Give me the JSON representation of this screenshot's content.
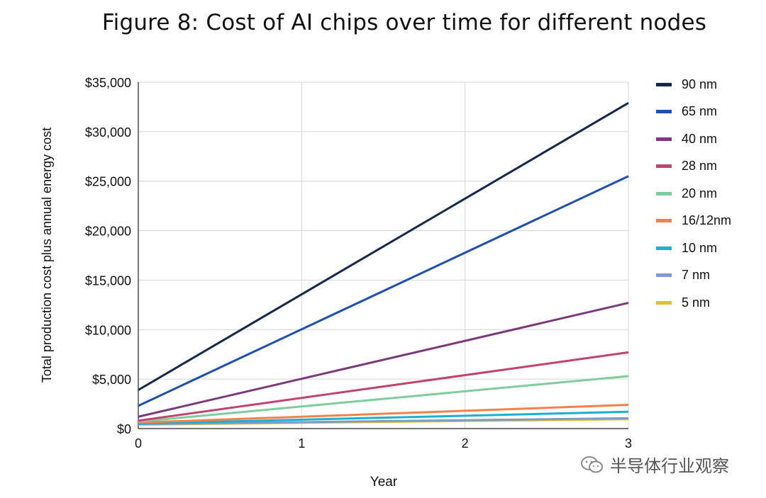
{
  "title": "Figure 8: Cost of AI chips over time for different nodes",
  "watermark": "半导体行业观察",
  "watermark_icon": "wechat-icon",
  "chart_data": {
    "type": "line",
    "title": "Figure 8: Cost of AI chips over time for different nodes",
    "xlabel": "Year",
    "ylabel": "Total production cost plus annual energy cost",
    "xlim": [
      0,
      3
    ],
    "ylim": [
      0,
      35000
    ],
    "x_ticks": [
      0,
      1,
      2,
      3
    ],
    "x_tick_labels": [
      "0",
      "1",
      "2",
      "3"
    ],
    "y_ticks": [
      0,
      5000,
      10000,
      15000,
      20000,
      25000,
      30000,
      35000
    ],
    "y_tick_labels": [
      "$0",
      "$5,000",
      "$10,000",
      "$15,000",
      "$20,000",
      "$25,000",
      "$30,000",
      "$35,000"
    ],
    "grid": true,
    "legend_position": "right",
    "series": [
      {
        "name": "90 nm",
        "color": "#14284b",
        "x": [
          0,
          3
        ],
        "values": [
          3900,
          32900
        ]
      },
      {
        "name": "65 nm",
        "color": "#1f4fb0",
        "x": [
          0,
          3
        ],
        "values": [
          2300,
          25500
        ]
      },
      {
        "name": "40 nm",
        "color": "#7b3b7a",
        "x": [
          0,
          3
        ],
        "values": [
          1200,
          12700
        ]
      },
      {
        "name": "28 nm",
        "color": "#c2436f",
        "x": [
          0,
          3
        ],
        "values": [
          800,
          7700
        ]
      },
      {
        "name": "20 nm",
        "color": "#7fcc9d",
        "x": [
          0,
          3
        ],
        "values": [
          700,
          5300
        ]
      },
      {
        "name": "16/12nm",
        "color": "#f0834a",
        "x": [
          0,
          3
        ],
        "values": [
          600,
          2400
        ]
      },
      {
        "name": "10 nm",
        "color": "#1bb0d3",
        "x": [
          0,
          3
        ],
        "values": [
          500,
          1700
        ]
      },
      {
        "name": "7 nm",
        "color": "#7f9cc9",
        "x": [
          0,
          3
        ],
        "values": [
          450,
          1050
        ]
      },
      {
        "name": "5 nm",
        "color": "#e5be2d",
        "x": [
          0,
          3
        ],
        "values": [
          400,
          950
        ]
      }
    ]
  }
}
